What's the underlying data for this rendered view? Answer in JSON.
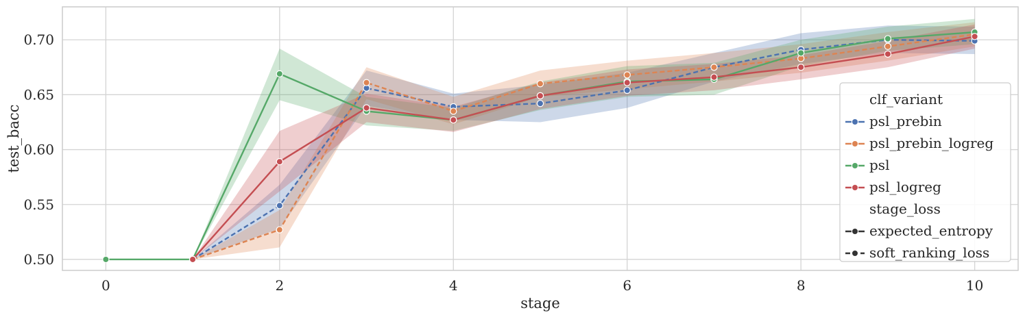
{
  "chart_data": {
    "type": "line",
    "xlabel": "stage",
    "ylabel": "test_bacc",
    "xlim": [
      -0.5,
      10.5
    ],
    "ylim": [
      0.49,
      0.73
    ],
    "xticks": [
      0,
      2,
      4,
      6,
      8,
      10
    ],
    "yticks": [
      0.5,
      0.55,
      0.6,
      0.65,
      0.7
    ],
    "grid": true,
    "legend_position": "center-right",
    "legend": {
      "hue_title": "clf_variant",
      "style_title": "stage_loss",
      "style_entries": [
        {
          "label": "expected_entropy",
          "dash": "solid"
        },
        {
          "label": "soft_ranking_loss",
          "dash": "dashed"
        }
      ]
    },
    "series": [
      {
        "name": "psl_prebin",
        "color": "#4c72b0",
        "dash": "dashed",
        "x": [
          1,
          2,
          3,
          4,
          5,
          6,
          7,
          8,
          9,
          10
        ],
        "y": [
          0.5,
          0.549,
          0.656,
          0.639,
          0.642,
          0.654,
          0.675,
          0.691,
          0.7,
          0.699
        ],
        "ci_low": [
          0.5,
          0.528,
          0.64,
          0.627,
          0.625,
          0.638,
          0.662,
          0.678,
          0.688,
          0.687
        ],
        "ci_high": [
          0.5,
          0.568,
          0.672,
          0.651,
          0.659,
          0.67,
          0.688,
          0.706,
          0.713,
          0.712
        ]
      },
      {
        "name": "psl_prebin_logreg",
        "color": "#dd8452",
        "dash": "dashed",
        "x": [
          1,
          2,
          3,
          4,
          5,
          6,
          7,
          8,
          9,
          10
        ],
        "y": [
          0.5,
          0.527,
          0.661,
          0.635,
          0.66,
          0.668,
          0.675,
          0.683,
          0.694,
          0.705
        ],
        "ci_low": [
          0.5,
          0.511,
          0.646,
          0.623,
          0.648,
          0.655,
          0.662,
          0.67,
          0.681,
          0.694
        ],
        "ci_high": [
          0.5,
          0.545,
          0.675,
          0.648,
          0.672,
          0.681,
          0.688,
          0.696,
          0.707,
          0.716
        ]
      },
      {
        "name": "psl",
        "color": "#55a868",
        "dash": "solid",
        "x": [
          0,
          1,
          2,
          3,
          4,
          5,
          6,
          7,
          8,
          9,
          10
        ],
        "y": [
          0.5,
          0.5,
          0.669,
          0.635,
          0.627,
          0.649,
          0.662,
          0.664,
          0.688,
          0.701,
          0.707
        ],
        "ci_low": [
          0.5,
          0.5,
          0.645,
          0.622,
          0.617,
          0.636,
          0.648,
          0.65,
          0.676,
          0.69,
          0.696
        ],
        "ci_high": [
          0.5,
          0.5,
          0.692,
          0.648,
          0.638,
          0.662,
          0.676,
          0.679,
          0.7,
          0.712,
          0.719
        ]
      },
      {
        "name": "psl_logreg",
        "color": "#c44e52",
        "dash": "solid",
        "x": [
          1,
          2,
          3,
          4,
          5,
          6,
          7,
          8,
          9,
          10
        ],
        "y": [
          0.5,
          0.589,
          0.638,
          0.627,
          0.649,
          0.661,
          0.666,
          0.675,
          0.687,
          0.703
        ],
        "ci_low": [
          0.5,
          0.562,
          0.625,
          0.616,
          0.637,
          0.649,
          0.654,
          0.664,
          0.675,
          0.692
        ],
        "ci_high": [
          0.5,
          0.617,
          0.651,
          0.639,
          0.661,
          0.673,
          0.678,
          0.686,
          0.699,
          0.714
        ]
      }
    ]
  }
}
